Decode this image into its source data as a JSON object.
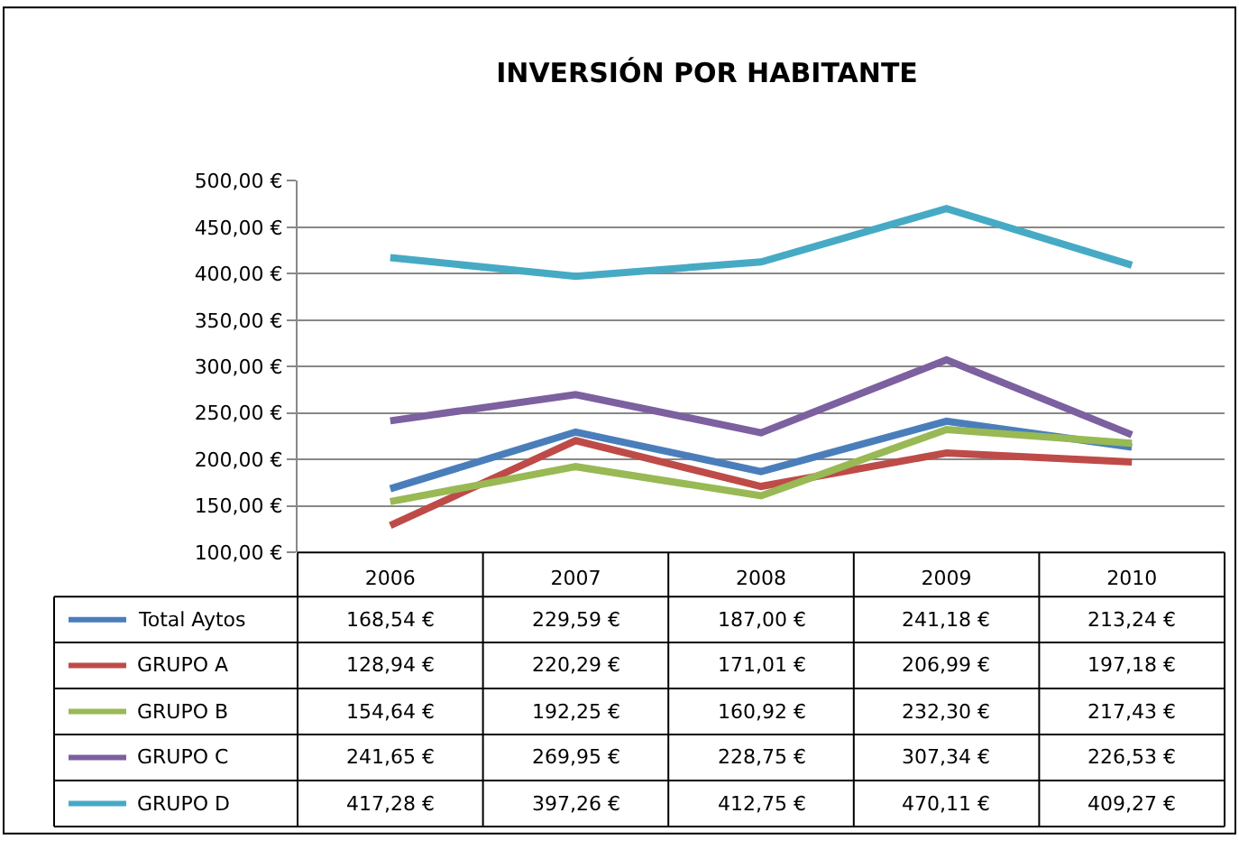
{
  "chart_data": {
    "type": "line",
    "title": "INVERSIÓN POR HABITANTE",
    "categories": [
      "2006",
      "2007",
      "2008",
      "2009",
      "2010"
    ],
    "ylim": [
      100,
      500
    ],
    "yticks": [
      {
        "value": 100,
        "label": "100,00 €"
      },
      {
        "value": 150,
        "label": "150,00 €"
      },
      {
        "value": 200,
        "label": "200,00 €"
      },
      {
        "value": 250,
        "label": "250,00 €"
      },
      {
        "value": 300,
        "label": "300,00 €"
      },
      {
        "value": 350,
        "label": "350,00 €"
      },
      {
        "value": 400,
        "label": "400,00 €"
      },
      {
        "value": 450,
        "label": "450,00 €"
      },
      {
        "value": 500,
        "label": "500,00 €"
      }
    ],
    "grid": "y",
    "legend": "bottom left",
    "marker": "none",
    "line_style": "solid",
    "series": [
      {
        "name": "Total Aytos",
        "color": "#4a7ebb",
        "values": [
          168.54,
          229.59,
          187.0,
          241.18,
          213.24
        ],
        "value_labels": [
          "168,54 €",
          "229,59 €",
          "187,00 €",
          "241,18 €",
          "213,24 €"
        ]
      },
      {
        "name": "GRUPO A",
        "color": "#be4b48",
        "values": [
          128.94,
          220.29,
          171.01,
          206.99,
          197.18
        ],
        "value_labels": [
          "128,94 €",
          "220,29 €",
          "171,01 €",
          "206,99 €",
          "197,18 €"
        ]
      },
      {
        "name": "GRUPO B",
        "color": "#98b954",
        "values": [
          154.64,
          192.25,
          160.92,
          232.3,
          217.43
        ],
        "value_labels": [
          "154,64 €",
          "192,25 €",
          "160,92 €",
          "232,30 €",
          "217,43 €"
        ]
      },
      {
        "name": "GRUPO C",
        "color": "#7d60a0",
        "values": [
          241.65,
          269.95,
          228.75,
          307.34,
          226.53
        ],
        "value_labels": [
          "241,65 €",
          "269,95 €",
          "228,75 €",
          "307,34 €",
          "226,53 €"
        ]
      },
      {
        "name": "GRUPO D",
        "color": "#46aac5",
        "values": [
          417.28,
          397.26,
          412.75,
          470.11,
          409.27
        ],
        "value_labels": [
          "417,28 €",
          "397,26 €",
          "412,75 €",
          "470,11 €",
          "409,27 €"
        ]
      }
    ]
  }
}
